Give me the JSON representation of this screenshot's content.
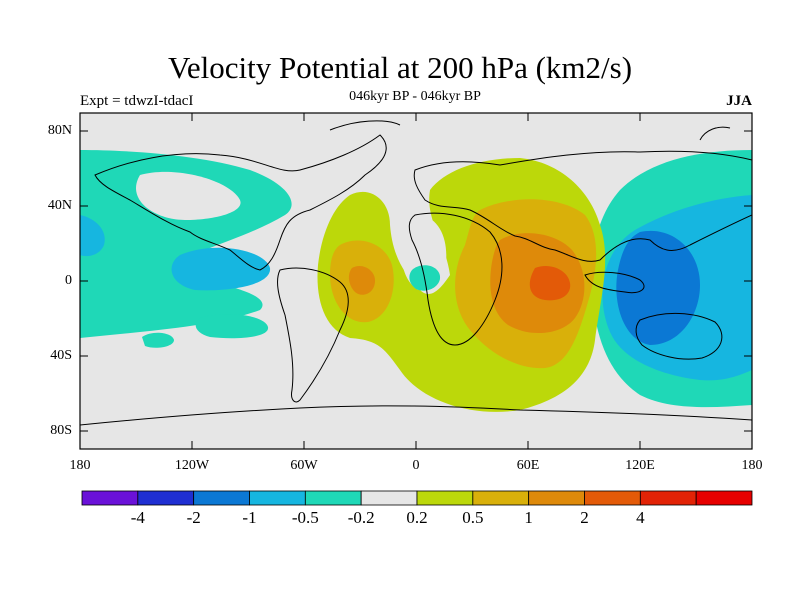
{
  "title": "Velocity Potential at 200 hPa (km2/s)",
  "subtitle": "046kyr BP - 046kyr BP",
  "left_label": "Expt = tdwzI-tdacI",
  "right_label": "JJA",
  "lat_labels": [
    "80N",
    "40N",
    "0",
    "40S",
    "80S"
  ],
  "lon_labels": [
    "180",
    "120W",
    "60W",
    "0",
    "60E",
    "120E",
    "180"
  ],
  "colorbar": {
    "colors": [
      "#6a11d8",
      "#1f2fd2",
      "#0b78d4",
      "#16b6e0",
      "#1fd8b7",
      "#e6e6e6",
      "#bcd80a",
      "#d9b00a",
      "#de8a0a",
      "#e35a08",
      "#e22306",
      "#e60000"
    ],
    "labels": [
      "-4",
      "-2",
      "-1",
      "-0.5",
      "-0.2",
      "0.2",
      "0.5",
      "1",
      "2",
      "4"
    ]
  },
  "colors": {
    "background": "#e6e6e6",
    "neg_weak": "#1fd8b7",
    "neg_mid": "#16b6e0",
    "neg_strong": "#0b78d4",
    "pos_weak": "#bcd80a",
    "pos_mid": "#d9b00a",
    "pos_strong": "#de8a0a",
    "pos_max": "#e35a08"
  }
}
